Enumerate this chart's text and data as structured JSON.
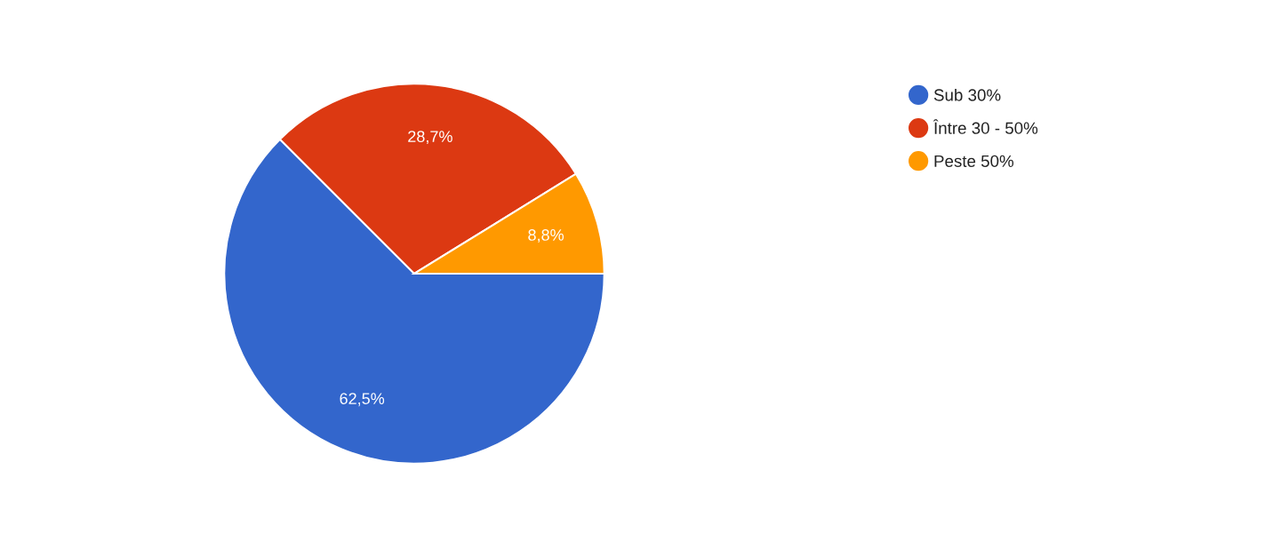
{
  "chart_data": {
    "type": "pie",
    "categories": [
      "Sub 30%",
      "Între 30 - 50%",
      "Peste 50%"
    ],
    "values": [
      62.5,
      28.7,
      8.8
    ],
    "colors": [
      "#3366cc",
      "#dc3912",
      "#ff9900"
    ],
    "value_labels": [
      "62,5%",
      "28,7%",
      "8,8%"
    ],
    "legend": "right"
  }
}
